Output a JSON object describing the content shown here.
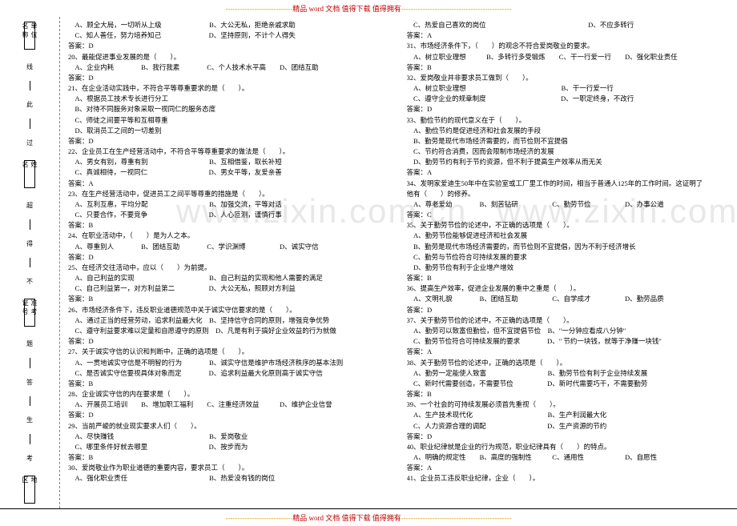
{
  "header": {
    "dash": "----------------------------",
    "text": "精品 word 文档 值得下载 值得拥有",
    "dash2": "----------------------------------------------"
  },
  "footer": {
    "dash": "----------------------------",
    "text": "精品 word 文档 值得下载 值得拥有",
    "dash2": "----------------------------------------------"
  },
  "watermark": "www.zixin.com.cn",
  "sidebar": {
    "boxes": [
      "单位名称",
      "姓　　名",
      "准考证号",
      "地　　区"
    ],
    "chars": [
      "线",
      "此",
      "过",
      "超",
      "得",
      "不",
      "题",
      "答",
      "生",
      "考"
    ],
    "vtext": ""
  },
  "col1": [
    "　A、顾全大局，一切听从上级　　　　　　　B、大公无私，拒绝亲戚求助",
    "　C、知人善任，努力培养知己　　　　　　　D、坚持原则，不计个人得失",
    "答案：D",
    "20、最能促进事业发展的是（　　）。",
    "　A、企业内耗　　　　B、我行我素　　　　C、个人技术水平高　　D、团结互助",
    "答案：D",
    "21、在企业活动实践中，不符合平等尊重要求的是（　　）。",
    "　A、根据员工技术专长进行分工",
    "　B、对待不同服务对象采取一视同仁的服务态度",
    "　C、师徒之间要平等和互相尊重",
    "　D、取消员工之间的一切差别",
    "答案：D",
    "22、企业员工在生产经营活动中，不符合平等尊重要求的做法是（　　）。",
    "　A、男女有别，尊重有别　　　　　　　　　B、互相借鉴，取长补短",
    "　C、真诚相待，一视同仁　　　　　　　　　D、男女平等，友爱亲善",
    "答案：A",
    "23、在生产经营活动中，促进员工之间平等尊重的措施是（　　）。",
    "　A、互利互惠，平均分配　　　　　　　　　B、加强交流，平等对话",
    "　C、只要合作，不要竞争　　　　　　　　　D、人心叵测，谨慎行事",
    "答案：B",
    "24、在职业活动中，（　　）是为人之本。",
    "　A、尊重别人　　　　B、团结互助　　　　C、学识渊博　　　　　D、诚实守信",
    "答案：D",
    "25、在经济交往活动中，应以（　　）为前提。",
    "　A、自己利益的实现　　　　　　　　　　　B、自己利益的实现和他人需要的满足",
    "　C、自己利益第一，对方利益第二　　　　　D、大公无私，照顾对方利益",
    "答案：B",
    "26、市场经济条件下，违反职业道德规范中关于诚实守信要求的是（　　）。",
    "　A、通过正当的经营劳动，追求利益最大化　B、坚持信守合同的原则，增强竞争优势",
    "　C、遵守利益要求难以定量和自愿遵守的原则　D、凡是有利于搞好企业效益的行为就做",
    "答案：D",
    "27、关于诚实守信的认识和判断中，正确的选项是（　　）。",
    "　A、一贯地诚实守信是不明智的行为　　　　B、诚实守信是维护市场经济秩序的基本法则",
    "　C、是否诚实守信要视具体对象而定　　　　D、追求利益最大化原则高于诚实守信",
    "答案：B",
    "28、企业诚实守信的内在要求是（　　）。",
    "　A、开展员工培训　　B、增加职工福利　　C、注重经济效益　　　D、维护企业信誉",
    "答案：D",
    "29、当前严峻的就业现实要求人们（　　）。",
    "　A、尽快赚钱　　　　　　　　　　　　　　B、爱岗敬业",
    "　C、哪里条件好就去哪里　　　　　　　　　D、按步而为",
    "答案：B",
    "30、爱岗敬业作为职业道德的重要内容，要求员工（　　）。",
    "　A、强化职业责任　　　　　　　　　　　　B、热爱没有钱的岗位"
  ],
  "col2": [
    "　C、热爱自己喜欢的岗位　　　　　　　　　　　　　　　D、不应多转行",
    "答案：A",
    "31、市场经济条件下，（　　）的观念不符合爱岗敬业的要求。",
    "　A、树立职业理想　　　B、多转行多受锻炼　　C、干一行爱一行　　D、强化职业责任",
    "答案：B",
    "32、爱岗敬业并非要求员工做到（　　）。",
    "　A、树立职业理想　　　　　　　　　　　　　　B、干一行爱一行",
    "　C、遵守企业的规章制度　　　　　　　　　　　D、一职定终身，不改行",
    "答案：D",
    "33、勤俭节约的现代意义在于（　　）。",
    "　A、勤俭节约是促进经济和社会发展的手段",
    "　B、勤劳是现代市场经济需要的，而节俭则不宜提倡",
    "　C、节约符合消费，因而会限制市场经济的发展",
    "　D、勤劳节约有利于节约资源，但不利于提高生产效率从而无关",
    "答案：A",
    "34、发明家爱迪生50年中在实验室或工厂里工作的时间，相当于普通人125年的工作时间。这证明了",
    "他有（　　）的修养。",
    "　A、尊老爱幼　　　　B、刻苦钻研　　　　　C、勤劳节俭　　　　　D、办事公道",
    "答案：C",
    "35、关于勤劳节俭的论述中，不正确的选项是（　　）。",
    "　A、勤劳节俭能够促进经济和社会发展",
    "　B、勤劳是现代市场经济需要的，而节俭则不宜提倡，因为不利于经济增长",
    "　C、勤劳与节俭符合可持续发展的要求",
    "　D、勤劳节俭有利于企业增产增效",
    "答案：B",
    "36、提高生产效率，促进企业发展的重中之重是（　　）。",
    "　A、文明礼貌　　　　B、团结互助　　　　　C、自学成才　　　　　D、勤劳品质",
    "答案：D",
    "37、关于勤劳节俭的论述中，不正确的选项是（　　）。",
    "　A、勤劳可以致富但勤俭，但不宜提倡节俭　B、\"一分钟应看成八分钟\"",
    "　C、勤劳节俭符合可持续发展的要求　　　　D、\" 节约一块钱，就等于净赚一块钱\"",
    "答案：A",
    "38、关于勤劳节俭的论述中，正确的选项是（　　）。",
    "　A、勤劳一定能使人致富　　　　　　　　　B、勤劳节俭有利于企业持续发展",
    "　C、新时代需要创造，不需要节俭　　　　　D、新时代需要巧干，不需要勤劳",
    "答案：B",
    "39、一个社会的可持续发展必须首先重视（　　）。",
    "　A、生产技术现代化　　　　　　　　　　　B、生产利润最大化",
    "　C、人力资源合理的调配　　　　　　　　　D、生产资源的节约",
    "答案：D",
    "40、职业纪律就是企业的行为规范，职业纪律具有（　　）的特点。",
    "　A、明确的规定性　　B、高度的强制性　　　C、通用性　　　　　　D、自愿性",
    "答案：A",
    "41、企业员工违反职业纪律，企业（　　）。"
  ]
}
